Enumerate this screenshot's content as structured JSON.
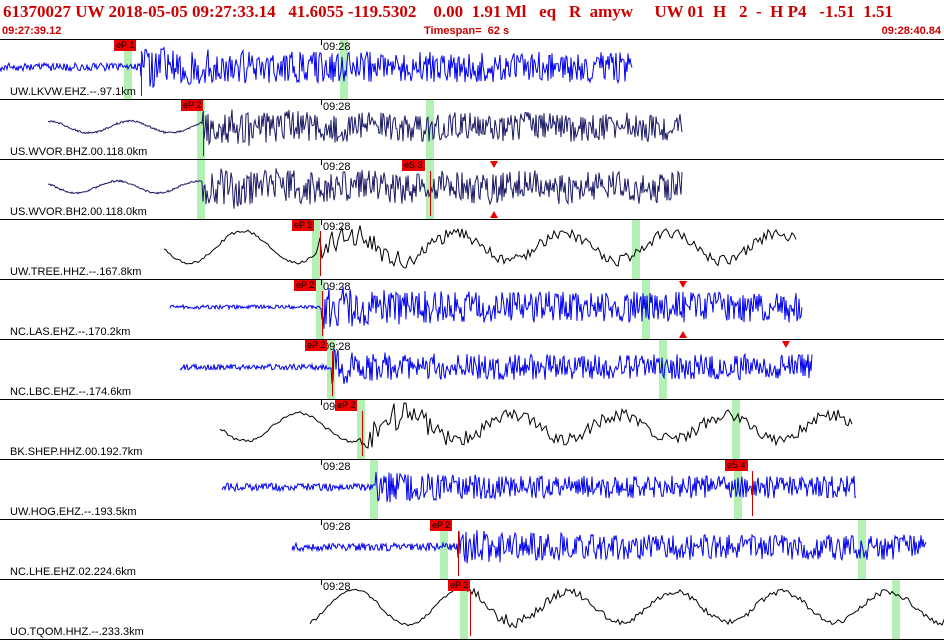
{
  "header": {
    "title": "61370027 UW 2018-05-05 09:27:33.14   41.6055 -119.5302    0.00  1.91 Ml   eq   R  amyw     UW 01  H   2  -  H P4   -1.51  1.51",
    "start_time": "09:27:39.12",
    "timespan": "Timespan=  62 s",
    "end_time": "09:28:40.84"
  },
  "colors": {
    "trace_blue": "#0000ee",
    "trace_navy": "#1a1a66",
    "trace_black": "#000000",
    "pick_red": "#ee0000",
    "window_green": "#b4f0b4",
    "header_red": "#cc0000"
  },
  "time_tick": "09:28",
  "panels": [
    {
      "label": "UW.LKVW.EHZ.--.97.1km",
      "color": "blue",
      "style": "noise",
      "start": 0,
      "end": 632,
      "onset": 141,
      "amp": 4,
      "burst": 22,
      "picks": [
        {
          "text": "eP 1",
          "x": 114,
          "line": 141
        }
      ],
      "windows": [
        [
          124,
          132
        ],
        [
          340,
          348
        ]
      ],
      "markers": []
    },
    {
      "label": "US.WVOR.BHZ.00.118.0km",
      "color": "navy",
      "style": "mix",
      "start": 48,
      "end": 682,
      "onset": 203,
      "amp": 6,
      "burst": 20,
      "picks": [
        {
          "text": "eP 2",
          "x": 181,
          "line": 203
        }
      ],
      "windows": [
        [
          197,
          205
        ],
        [
          426,
          434
        ]
      ],
      "markers": []
    },
    {
      "label": "US.WVOR.BH2.00.118.0km",
      "color": "navy",
      "style": "mix",
      "start": 48,
      "end": 682,
      "onset": 203,
      "amp": 6,
      "burst": 22,
      "picks": [
        {
          "text": "eS 3",
          "x": 402,
          "line": 430
        }
      ],
      "windows": [
        [
          197,
          205
        ],
        [
          426,
          434
        ]
      ],
      "markers": [
        {
          "x": 494,
          "dir": "down"
        },
        {
          "x": 494,
          "dir": "up"
        }
      ]
    },
    {
      "label": "UW.TREE.HHZ.--.167.8km",
      "color": "black",
      "style": "wave",
      "start": 164,
      "end": 796,
      "onset": 318,
      "amp": 16,
      "burst": 16,
      "picks": [
        {
          "text": "eP 2",
          "x": 292,
          "line": 320
        }
      ],
      "windows": [
        [
          312,
          320
        ],
        [
          632,
          640
        ]
      ],
      "markers": []
    },
    {
      "label": "NC.LAS.EHZ.--.170.2km",
      "color": "blue",
      "style": "noise",
      "start": 170,
      "end": 802,
      "onset": 322,
      "amp": 2,
      "burst": 22,
      "picks": [
        {
          "text": "eP 2",
          "x": 294,
          "line": 322
        }
      ],
      "windows": [
        [
          316,
          324
        ],
        [
          642,
          650
        ]
      ],
      "markers": [
        {
          "x": 683,
          "dir": "down"
        },
        {
          "x": 683,
          "dir": "up"
        }
      ]
    },
    {
      "label": "NC.LBC.EHZ.--.174.6km",
      "color": "blue",
      "style": "noise",
      "start": 180,
      "end": 812,
      "onset": 332,
      "amp": 3,
      "burst": 18,
      "picks": [
        {
          "text": "eP 2",
          "x": 305,
          "line": 332
        }
      ],
      "windows": [
        [
          327,
          335
        ],
        [
          659,
          667
        ]
      ],
      "markers": [
        {
          "x": 786,
          "dir": "down"
        }
      ]
    },
    {
      "label": "BK.SHEP.HHZ.00.192.7km",
      "color": "black",
      "style": "wave",
      "start": 220,
      "end": 852,
      "onset": 362,
      "amp": 14,
      "burst": 18,
      "picks": [
        {
          "text": "eP 2",
          "x": 335,
          "line": 362
        }
      ],
      "windows": [
        [
          357,
          365
        ],
        [
          732,
          740
        ]
      ],
      "markers": []
    },
    {
      "label": "UW.HOG.EHZ.--.193.5km",
      "color": "blue",
      "style": "noise",
      "start": 222,
      "end": 856,
      "onset": 376,
      "amp": 4,
      "burst": 16,
      "picks": [
        {
          "text": "eS 4",
          "x": 725,
          "line": 752
        }
      ],
      "windows": [
        [
          370,
          378
        ],
        [
          734,
          742
        ]
      ],
      "markers": []
    },
    {
      "label": "NC.LHE.EHZ.02.224.6km",
      "color": "blue",
      "style": "noise",
      "start": 292,
      "end": 926,
      "onset": 458,
      "amp": 4,
      "burst": 18,
      "picks": [
        {
          "text": "eP 2",
          "x": 430,
          "line": 458
        }
      ],
      "windows": [
        [
          440,
          448
        ],
        [
          858,
          866
        ]
      ],
      "markers": []
    },
    {
      "label": "UO.TQOM.HHZ.--.233.3km",
      "color": "black",
      "style": "wave",
      "start": 310,
      "end": 944,
      "onset": 470,
      "amp": 18,
      "burst": 8,
      "picks": [
        {
          "text": "eP 2",
          "x": 448,
          "line": 470
        }
      ],
      "windows": [
        [
          460,
          468
        ],
        [
          892,
          900
        ]
      ],
      "markers": []
    }
  ]
}
